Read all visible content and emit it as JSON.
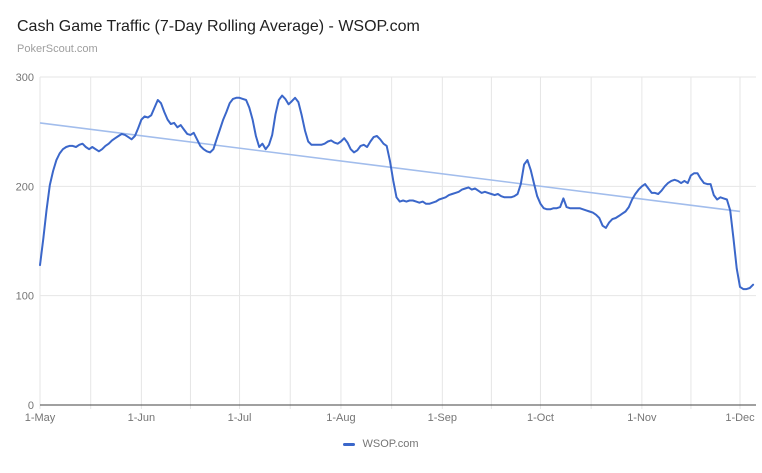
{
  "header": {
    "title": "Cash Game Traffic (7-Day Rolling Average) - WSOP.com",
    "subtitle": "PokerScout.com"
  },
  "legend": {
    "label": "WSOP.com"
  },
  "colors": {
    "series_line": "#3b67ca",
    "trend_line": "#a2bdec",
    "gridline": "#e6e6e6",
    "axis_line": "#424242",
    "tick_label": "#757575",
    "title_text": "#212121",
    "subtitle_text": "#9e9e9e",
    "background": "#ffffff"
  },
  "chart_data": {
    "type": "line",
    "title": "Cash Game Traffic (7-Day Rolling Average) - WSOP.com",
    "source": "PokerScout.com",
    "grid": true,
    "legend_position": "bottom",
    "legend_entries": [
      "WSOP.com"
    ],
    "x_unit": "days since 1-May, daily samples",
    "x_tick_labels": [
      "1-May",
      "1-Jun",
      "1-Jul",
      "1-Aug",
      "1-Sep",
      "1-Oct",
      "1-Nov",
      "1-Dec"
    ],
    "x_tick_days": [
      0,
      31,
      61,
      92,
      123,
      153,
      184,
      214
    ],
    "x_minor_gridlines_between_ticks": true,
    "xlim_days": [
      0,
      219
    ],
    "y_ticks": [
      0,
      100,
      200,
      300
    ],
    "ylim": [
      0,
      300
    ],
    "series": [
      {
        "name": "WSOP.com",
        "x_start_day": 0,
        "x_step_days": 1,
        "values": [
          128,
          152,
          178,
          201,
          214,
          224,
          230,
          234,
          236,
          237,
          237,
          236,
          238,
          239,
          236,
          234,
          236,
          234,
          232,
          234,
          237,
          239,
          242,
          244,
          246,
          248,
          247,
          245,
          243,
          246,
          253,
          261,
          264,
          263,
          265,
          272,
          279,
          276,
          268,
          261,
          257,
          258,
          254,
          256,
          252,
          248,
          247,
          249,
          243,
          237,
          234,
          232,
          231,
          234,
          243,
          252,
          261,
          268,
          276,
          280,
          281,
          281,
          280,
          279,
          272,
          261,
          246,
          236,
          239,
          234,
          238,
          247,
          266,
          279,
          283,
          280,
          275,
          278,
          281,
          277,
          265,
          251,
          241,
          238,
          238,
          238,
          238,
          239,
          241,
          242,
          240,
          239,
          241,
          244,
          240,
          234,
          231,
          233,
          237,
          238,
          236,
          241,
          245,
          246,
          243,
          239,
          237,
          223,
          205,
          190,
          186,
          187,
          186,
          187,
          187,
          186,
          185,
          186,
          184,
          184,
          185,
          186,
          188,
          189,
          190,
          192,
          193,
          194,
          195,
          197,
          198,
          199,
          197,
          198,
          196,
          194,
          195,
          194,
          193,
          192,
          193,
          191,
          190,
          190,
          190,
          191,
          193,
          202,
          220,
          224,
          215,
          203,
          191,
          184,
          180,
          179,
          179,
          180,
          180,
          181,
          189,
          181,
          180,
          180,
          180,
          180,
          179,
          178,
          177,
          176,
          174,
          171,
          164,
          162,
          167,
          170,
          171,
          173,
          175,
          177,
          181,
          188,
          193,
          197,
          200,
          202,
          198,
          194,
          194,
          193,
          196,
          200,
          203,
          205,
          206,
          205,
          203,
          205,
          203,
          210,
          212,
          212,
          207,
          203,
          202,
          202,
          192,
          188,
          190,
          189,
          188,
          178,
          152,
          125,
          108,
          106,
          106,
          107,
          110
        ]
      }
    ],
    "trendline": {
      "series": "WSOP.com",
      "day_range": [
        0,
        214
      ],
      "value_range": [
        258,
        177
      ]
    }
  }
}
